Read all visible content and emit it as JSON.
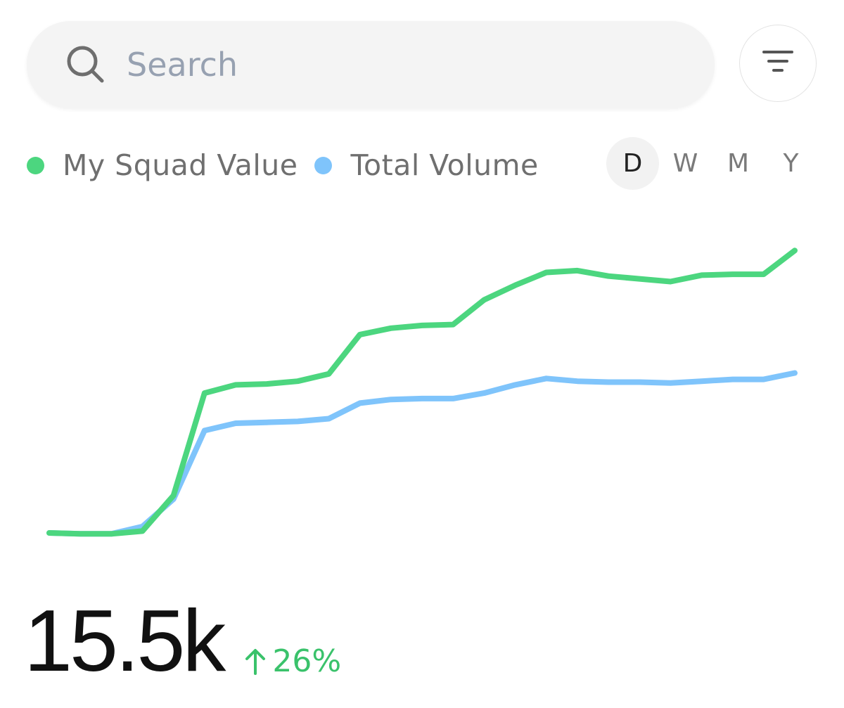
{
  "search": {
    "placeholder": "Search",
    "value": ""
  },
  "icons": {
    "search": "search-icon",
    "filter": "filter-icon",
    "change": "arrow-up-icon"
  },
  "legend": {
    "items": [
      {
        "label": "My Squad Value",
        "color": "#4cd67f"
      },
      {
        "label": "Total Volume",
        "color": "#7fc4fb"
      }
    ]
  },
  "periods": {
    "options": [
      "D",
      "W",
      "M",
      "Y"
    ],
    "selected": "D"
  },
  "colors": {
    "positive": "#3ac26b",
    "squad": "#4cd67f",
    "volume": "#7fc4fb"
  },
  "summary": {
    "value": "15.5k",
    "change": "26%"
  },
  "chart_data": {
    "type": "line",
    "x": [
      1,
      2,
      3,
      4,
      5,
      6,
      7,
      8,
      9,
      10,
      11,
      12,
      13,
      14,
      15,
      16,
      17,
      18,
      19,
      20,
      21,
      22,
      23,
      24,
      25
    ],
    "series": [
      {
        "name": "My Squad Value",
        "color": "#4cd67f",
        "values": [
          4.0,
          3.9,
          3.9,
          4.2,
          8.1,
          19.3,
          20.2,
          20.3,
          20.6,
          21.4,
          25.7,
          26.4,
          26.7,
          26.8,
          29.5,
          31.1,
          32.5,
          32.7,
          32.1,
          31.8,
          31.5,
          32.2,
          32.3,
          32.3,
          34.9
        ]
      },
      {
        "name": "Total Volume",
        "color": "#7fc4fb",
        "values": [
          4.0,
          3.9,
          3.9,
          4.7,
          7.7,
          15.2,
          16.0,
          16.1,
          16.2,
          16.5,
          18.2,
          18.6,
          18.7,
          18.7,
          19.3,
          20.2,
          20.9,
          20.6,
          20.5,
          20.5,
          20.4,
          20.6,
          20.8,
          20.8,
          21.5
        ]
      }
    ],
    "ylim": [
      0,
      40
    ],
    "grid": false,
    "legend": "top-left"
  }
}
